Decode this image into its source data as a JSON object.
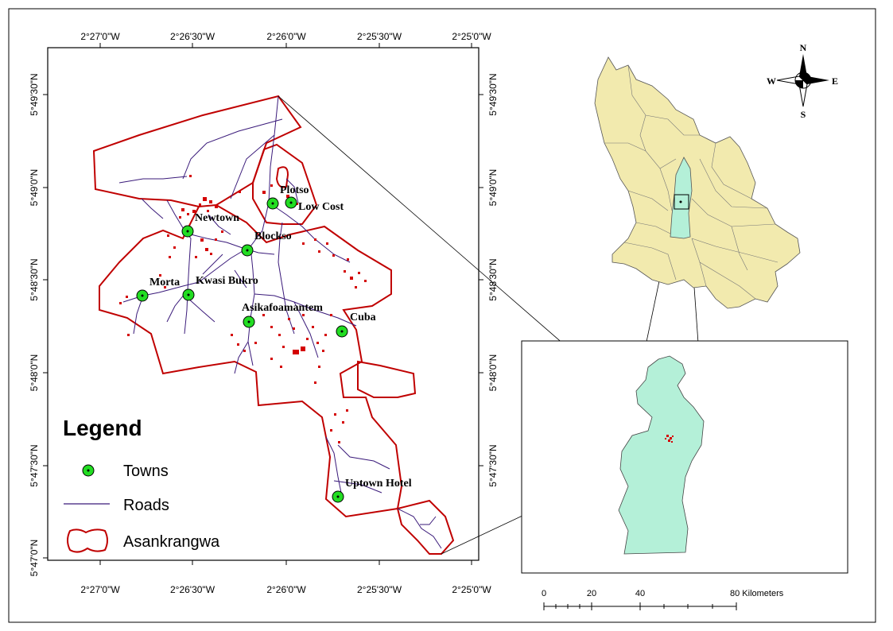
{
  "map": {
    "top_ticks": [
      "2°27'0\"W",
      "2°26'30\"W",
      "2°26'0\"W",
      "2°25'30\"W",
      "2°25'0\"W"
    ],
    "bottom_ticks": [
      "2°27'0\"W",
      "2°26'30\"W",
      "2°26'0\"W",
      "2°25'30\"W",
      "2°25'0\"W"
    ],
    "left_ticks": [
      "5°49'30\"N",
      "5°49'0\"N",
      "5°48'30\"N",
      "5°48'0\"N",
      "5°47'30\"N",
      "5°47'0\"N"
    ],
    "right_ticks": [
      "5°49'30\"N",
      "5°49'0\"N",
      "5°48'30\"N",
      "5°48'0\"N",
      "5°47'30\"N"
    ],
    "towns": [
      {
        "name": "Plotso"
      },
      {
        "name": "Low Cost"
      },
      {
        "name": "Newtown"
      },
      {
        "name": "Blockso"
      },
      {
        "name": "Morta"
      },
      {
        "name": "Kwasi Bukro"
      },
      {
        "name": "Asikafoamantem"
      },
      {
        "name": "Cuba"
      },
      {
        "name": "Uptown Hotel"
      }
    ]
  },
  "legend": {
    "title": "Legend",
    "items": [
      {
        "label": "Towns"
      },
      {
        "label": "Roads"
      },
      {
        "label": "Asankrangwa"
      }
    ]
  },
  "compass": {
    "n": "N",
    "s": "S",
    "e": "E",
    "w": "W"
  },
  "scale_bar": {
    "labels": [
      "0",
      "20",
      "40",
      "80 Kilometers"
    ]
  },
  "colors": {
    "boundary": "#c00000",
    "roads": "#3a1a7a",
    "towns": "#22dd22",
    "buildings": "#d40000",
    "region_fill": "#f2eaae",
    "district_fill": "#b4f0d8"
  }
}
